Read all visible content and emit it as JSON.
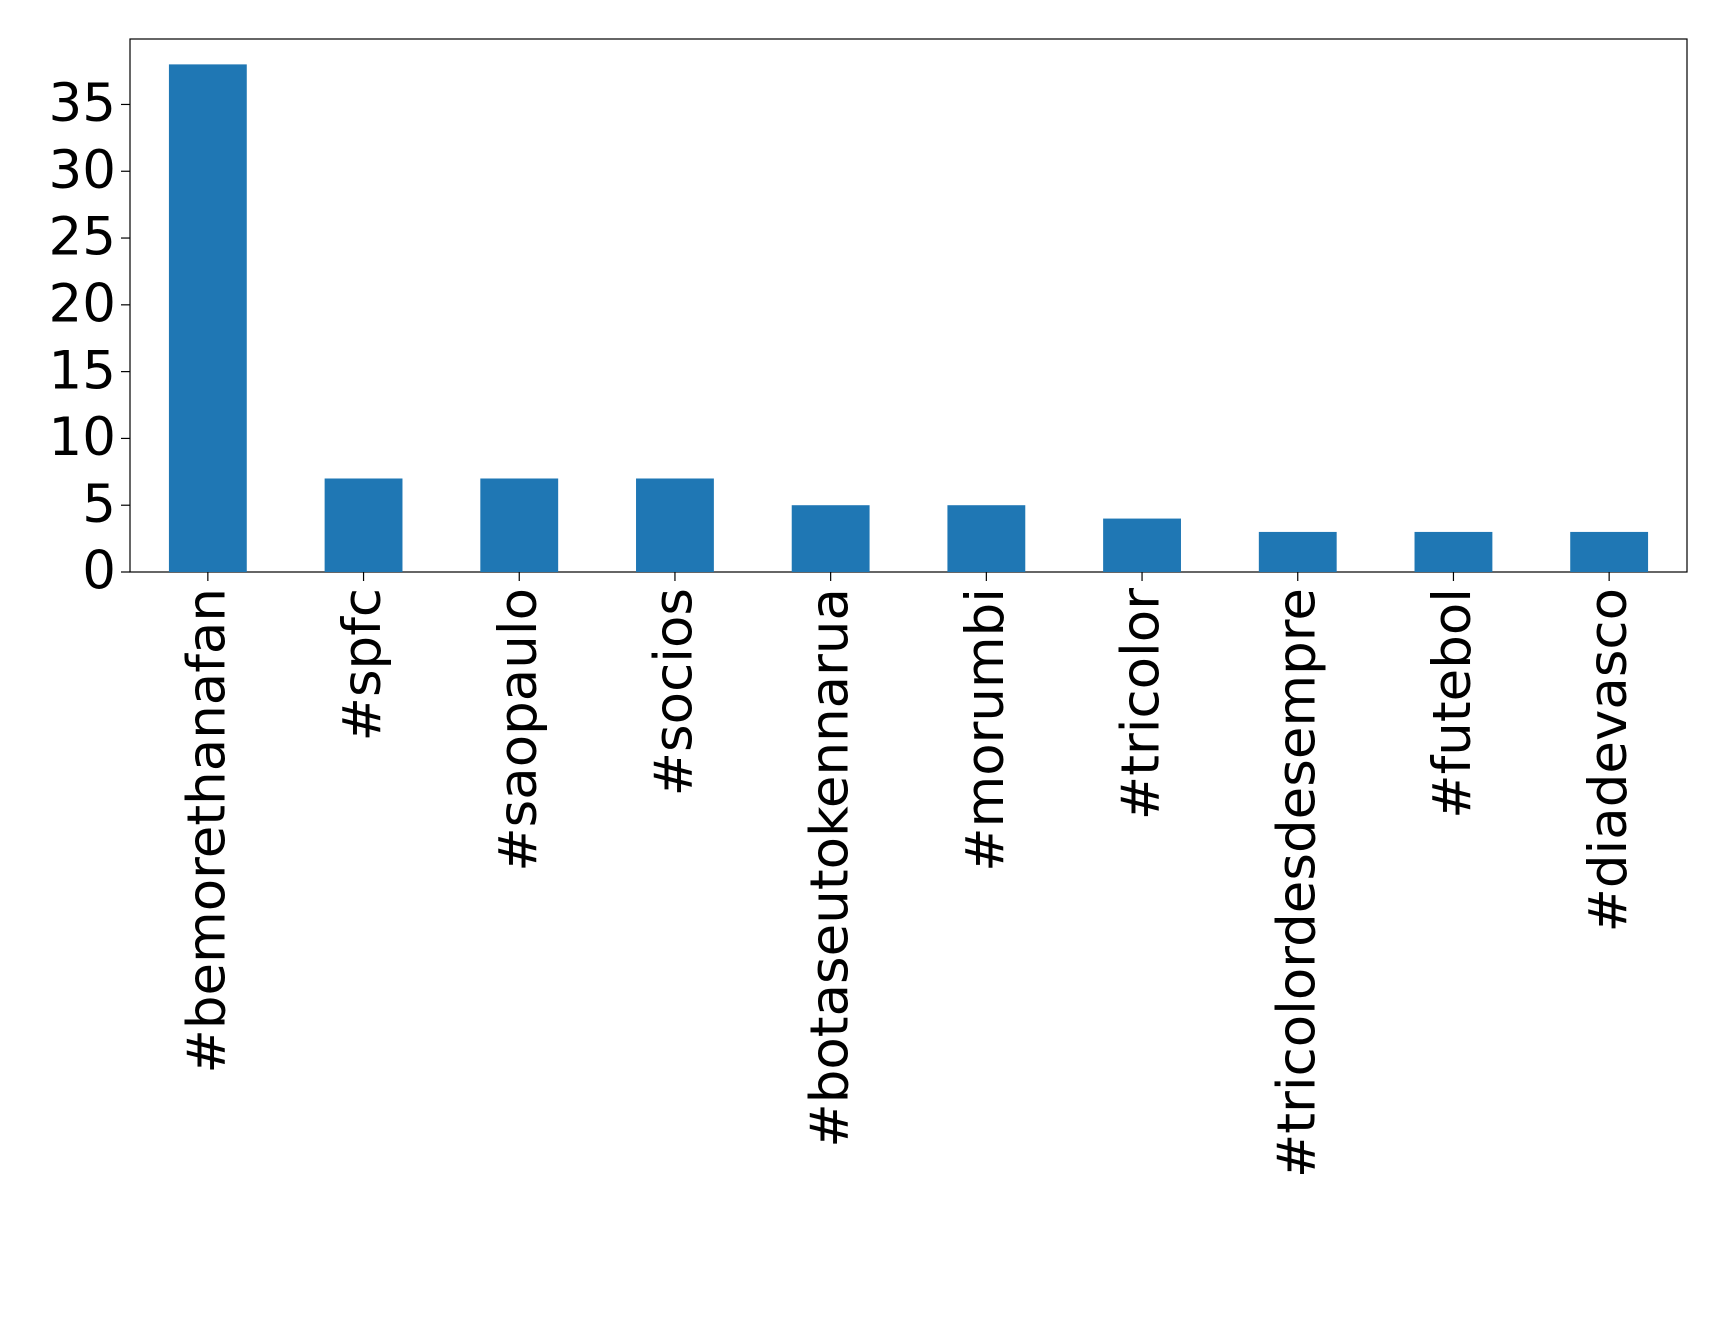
{
  "chart_data": {
    "type": "bar",
    "categories": [
      "#bemorethanafan",
      "#spfc",
      "#saopaulo",
      "#socios",
      "#botaseutokennarua",
      "#morumbi",
      "#tricolor",
      "#tricolordesdesempre",
      "#futebol",
      "#diadevasco"
    ],
    "values": [
      38,
      7,
      7,
      7,
      5,
      5,
      4,
      3,
      3,
      3
    ],
    "color": "#1f77b4",
    "ylim": [
      0,
      39.9
    ],
    "yticks": [
      0,
      5,
      10,
      15,
      20,
      25,
      30,
      35
    ],
    "grid": false
  }
}
